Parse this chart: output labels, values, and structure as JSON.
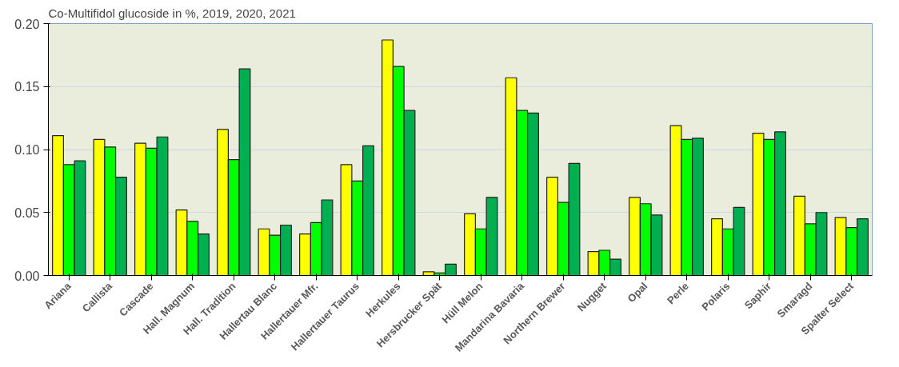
{
  "chart_data": {
    "type": "bar",
    "title": "Co-Multifidol glucoside in %, 2019, 2020, 2021",
    "categories": [
      "Ariana",
      "Callista",
      "Cascade",
      "Hall. Magnum",
      "Hall. Tradition",
      "Hallertau Blanc",
      "Hallertauer Mfr.",
      "Hallertauer Taurus",
      "Herkules",
      "Hersbrucker Spät",
      "Hüll Melon",
      "Mandarina Bavaria",
      "Northern Brewer",
      "Nugget",
      "Opal",
      "Perle",
      "Polaris",
      "Saphir",
      "Smaragd",
      "Spalter Select"
    ],
    "series": [
      {
        "color": "#ffff00",
        "values": [
          0.111,
          0.108,
          0.105,
          0.052,
          0.116,
          0.037,
          0.033,
          0.088,
          0.187,
          0.003,
          0.049,
          0.157,
          0.078,
          0.019,
          0.062,
          0.119,
          0.045,
          0.113,
          0.063,
          0.046
        ]
      },
      {
        "color": "#00ff00",
        "values": [
          0.088,
          0.102,
          0.101,
          0.043,
          0.092,
          0.032,
          0.042,
          0.075,
          0.166,
          0.002,
          0.037,
          0.131,
          0.058,
          0.02,
          0.057,
          0.108,
          0.037,
          0.108,
          0.041,
          0.038
        ]
      },
      {
        "color": "#00b050",
        "values": [
          0.091,
          0.078,
          0.11,
          0.033,
          0.164,
          0.04,
          0.06,
          0.103,
          0.131,
          0.009,
          0.062,
          0.129,
          0.089,
          0.013,
          0.048,
          0.109,
          0.054,
          0.114,
          0.05,
          0.045
        ]
      }
    ],
    "ylim": [
      0,
      0.2
    ],
    "yticks": [
      {
        "value": 0,
        "label": "0.00"
      },
      {
        "value": 0.05,
        "label": "0.05"
      },
      {
        "value": 0.1,
        "label": "0.10"
      },
      {
        "value": 0.15,
        "label": "0.15"
      },
      {
        "value": 0.2,
        "label": "0.20"
      }
    ],
    "grid": "y"
  }
}
